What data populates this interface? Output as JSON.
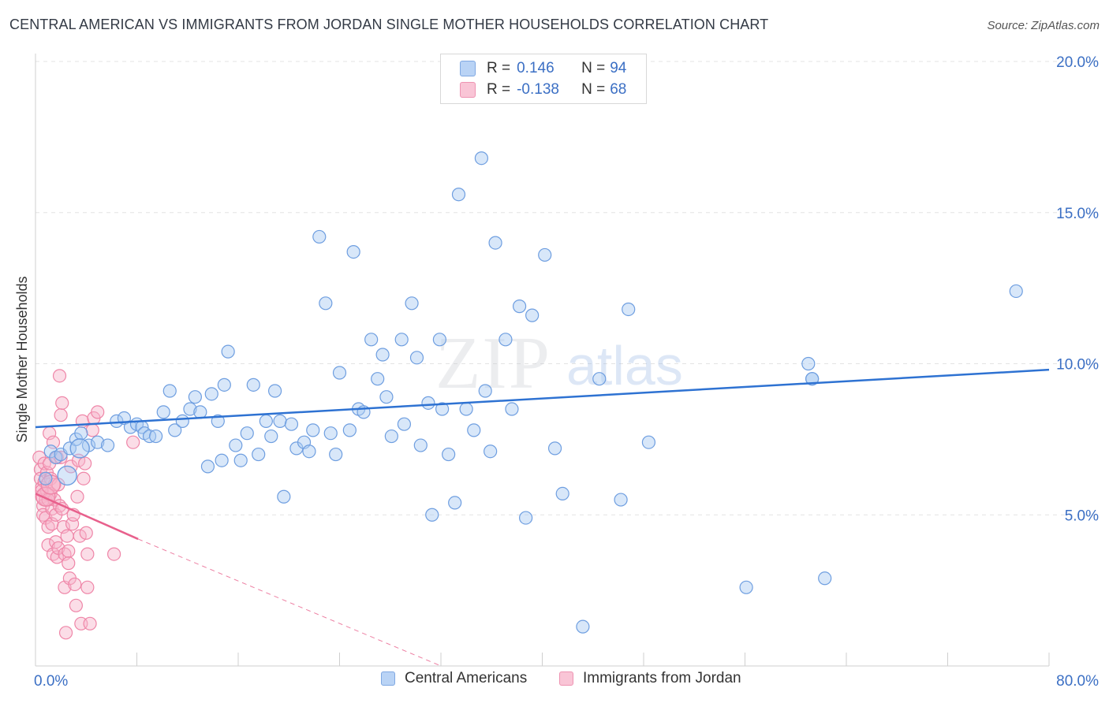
{
  "title": "CENTRAL AMERICAN VS IMMIGRANTS FROM JORDAN SINGLE MOTHER HOUSEHOLDS CORRELATION CHART",
  "source": "Source: ZipAtlas.com",
  "watermark": {
    "zip": "ZIP",
    "atlas": "atlas"
  },
  "legend_top": [
    {
      "r_label": "R = ",
      "r_value": "0.146",
      "n_label": "N = ",
      "n_value": "94"
    },
    {
      "r_label": "R = ",
      "r_value": "-0.138",
      "n_label": "N = ",
      "n_value": "68"
    }
  ],
  "legend_bottom": [
    "Central Americans",
    "Immigrants from Jordan"
  ],
  "colors": {
    "blue_fill": "#a9c9f2",
    "blue_stroke": "#6e9ee0",
    "blue_line": "#2e72d2",
    "pink_fill": "#f6b3c9",
    "pink_stroke": "#ef86a8",
    "pink_line": "#e8608c",
    "axis_text": "#3b6fc4"
  },
  "chart_data": {
    "type": "scatter",
    "title": "CENTRAL AMERICAN VS IMMIGRANTS FROM JORDAN SINGLE MOTHER HOUSEHOLDS CORRELATION CHART",
    "xlabel": "",
    "ylabel": "Single Mother Households",
    "xlim": [
      0,
      80
    ],
    "ylim": [
      0,
      20
    ],
    "x_tick_labels": [
      "0.0%",
      "80.0%"
    ],
    "y_ticks": [
      5,
      10,
      15,
      20
    ],
    "y_tick_labels": [
      "5.0%",
      "10.0%",
      "15.0%",
      "20.0%"
    ],
    "grid": "horizontal dashed",
    "legend_position": "top-center",
    "series": [
      {
        "name": "Central Americans",
        "color": "blue",
        "trend": {
          "x": [
            0,
            80
          ],
          "y": [
            7.9,
            9.8
          ],
          "style": "solid"
        },
        "points": [
          [
            0.8,
            6.2
          ],
          [
            1.2,
            7.1
          ],
          [
            1.6,
            6.9
          ],
          [
            2.0,
            7.0
          ],
          [
            2.7,
            7.2
          ],
          [
            3.2,
            7.5
          ],
          [
            3.6,
            7.7
          ],
          [
            4.2,
            7.3
          ],
          [
            4.9,
            7.4
          ],
          [
            5.7,
            7.3
          ],
          [
            6.4,
            8.1
          ],
          [
            7.0,
            8.2
          ],
          [
            7.5,
            7.9
          ],
          [
            8.0,
            8.0
          ],
          [
            8.4,
            7.9
          ],
          [
            8.6,
            7.7
          ],
          [
            9.0,
            7.6
          ],
          [
            9.5,
            7.6
          ],
          [
            10.1,
            8.4
          ],
          [
            10.6,
            9.1
          ],
          [
            11.0,
            7.8
          ],
          [
            11.6,
            8.1
          ],
          [
            12.2,
            8.5
          ],
          [
            12.6,
            8.9
          ],
          [
            13.0,
            8.4
          ],
          [
            13.6,
            6.6
          ],
          [
            13.9,
            9.0
          ],
          [
            14.4,
            8.1
          ],
          [
            14.7,
            6.8
          ],
          [
            14.9,
            9.3
          ],
          [
            15.2,
            10.4
          ],
          [
            15.8,
            7.3
          ],
          [
            16.2,
            6.8
          ],
          [
            16.7,
            7.7
          ],
          [
            17.2,
            9.3
          ],
          [
            17.6,
            7.0
          ],
          [
            18.2,
            8.1
          ],
          [
            18.6,
            7.6
          ],
          [
            18.9,
            9.1
          ],
          [
            19.3,
            8.1
          ],
          [
            19.6,
            5.6
          ],
          [
            20.2,
            8.0
          ],
          [
            20.6,
            7.2
          ],
          [
            21.2,
            7.4
          ],
          [
            21.6,
            7.1
          ],
          [
            21.9,
            7.8
          ],
          [
            22.4,
            14.2
          ],
          [
            22.9,
            12.0
          ],
          [
            23.3,
            7.7
          ],
          [
            23.7,
            7.0
          ],
          [
            24.0,
            9.7
          ],
          [
            24.8,
            7.8
          ],
          [
            25.1,
            13.7
          ],
          [
            25.5,
            8.5
          ],
          [
            25.9,
            8.4
          ],
          [
            26.5,
            10.8
          ],
          [
            27.0,
            9.5
          ],
          [
            27.4,
            10.3
          ],
          [
            27.7,
            8.9
          ],
          [
            28.1,
            7.6
          ],
          [
            28.9,
            10.8
          ],
          [
            29.1,
            8.0
          ],
          [
            29.7,
            12.0
          ],
          [
            30.1,
            10.2
          ],
          [
            30.4,
            7.3
          ],
          [
            31.0,
            8.7
          ],
          [
            31.3,
            5.0
          ],
          [
            31.9,
            10.8
          ],
          [
            32.1,
            8.5
          ],
          [
            32.6,
            7.0
          ],
          [
            33.1,
            5.4
          ],
          [
            33.4,
            15.6
          ],
          [
            34.0,
            8.5
          ],
          [
            34.6,
            7.8
          ],
          [
            35.2,
            16.8
          ],
          [
            35.5,
            9.1
          ],
          [
            35.9,
            7.1
          ],
          [
            36.3,
            14.0
          ],
          [
            37.1,
            10.8
          ],
          [
            37.6,
            8.5
          ],
          [
            38.2,
            11.9
          ],
          [
            38.7,
            4.9
          ],
          [
            39.2,
            11.6
          ],
          [
            40.2,
            13.6
          ],
          [
            41.0,
            7.2
          ],
          [
            41.6,
            5.7
          ],
          [
            43.2,
            1.3
          ],
          [
            44.5,
            9.5
          ],
          [
            46.2,
            5.5
          ],
          [
            46.8,
            11.8
          ],
          [
            48.4,
            7.4
          ],
          [
            56.1,
            2.6
          ],
          [
            61.0,
            10.0
          ],
          [
            61.3,
            9.5
          ],
          [
            61.3,
            9.5
          ],
          [
            62.3,
            2.9
          ],
          [
            77.4,
            12.4
          ]
        ],
        "big_points": [
          [
            2.5,
            6.3
          ],
          [
            3.5,
            7.2
          ]
        ]
      },
      {
        "name": "Immigrants from Jordan",
        "color": "pink",
        "trend": {
          "x": [
            0,
            8.1
          ],
          "y": [
            5.7,
            4.2
          ],
          "style": "solid",
          "extension": {
            "x": [
              8.1,
              32
            ],
            "y": [
              4.2,
              0
            ],
            "style": "dashed"
          }
        },
        "points": [
          [
            0.3,
            6.9
          ],
          [
            0.4,
            6.5
          ],
          [
            0.4,
            6.2
          ],
          [
            0.5,
            5.9
          ],
          [
            0.5,
            5.6
          ],
          [
            0.6,
            5.3
          ],
          [
            0.6,
            5.0
          ],
          [
            0.7,
            6.7
          ],
          [
            0.7,
            6.1
          ],
          [
            0.8,
            5.5
          ],
          [
            0.8,
            4.9
          ],
          [
            0.9,
            6.4
          ],
          [
            0.9,
            5.8
          ],
          [
            1.0,
            4.6
          ],
          [
            1.0,
            4.0
          ],
          [
            1.1,
            7.7
          ],
          [
            1.1,
            6.7
          ],
          [
            1.2,
            6.2
          ],
          [
            1.2,
            5.7
          ],
          [
            1.3,
            5.2
          ],
          [
            1.3,
            4.7
          ],
          [
            1.4,
            3.7
          ],
          [
            1.4,
            7.4
          ],
          [
            1.5,
            6.0
          ],
          [
            1.5,
            5.5
          ],
          [
            1.6,
            5.0
          ],
          [
            1.6,
            4.1
          ],
          [
            1.7,
            3.6
          ],
          [
            1.7,
            6.9
          ],
          [
            1.8,
            6.0
          ],
          [
            1.8,
            3.9
          ],
          [
            1.9,
            5.3
          ],
          [
            1.9,
            9.6
          ],
          [
            2.0,
            8.3
          ],
          [
            2.0,
            6.9
          ],
          [
            2.1,
            8.7
          ],
          [
            2.1,
            5.2
          ],
          [
            2.2,
            4.6
          ],
          [
            2.3,
            2.6
          ],
          [
            2.3,
            3.7
          ],
          [
            2.4,
            1.1
          ],
          [
            2.5,
            4.3
          ],
          [
            2.6,
            3.8
          ],
          [
            2.6,
            3.4
          ],
          [
            2.7,
            2.9
          ],
          [
            2.8,
            6.6
          ],
          [
            2.9,
            4.7
          ],
          [
            3.0,
            5.0
          ],
          [
            3.1,
            2.7
          ],
          [
            3.2,
            2.0
          ],
          [
            3.3,
            5.6
          ],
          [
            3.4,
            6.8
          ],
          [
            3.5,
            4.3
          ],
          [
            3.6,
            1.4
          ],
          [
            3.7,
            8.1
          ],
          [
            3.8,
            6.2
          ],
          [
            3.9,
            6.7
          ],
          [
            4.0,
            4.4
          ],
          [
            4.1,
            2.6
          ],
          [
            4.1,
            3.7
          ],
          [
            4.3,
            1.4
          ],
          [
            4.5,
            7.8
          ],
          [
            4.6,
            8.2
          ],
          [
            4.9,
            8.4
          ],
          [
            6.2,
            3.7
          ],
          [
            7.7,
            7.4
          ],
          [
            0.5,
            5.8
          ],
          [
            1.0,
            5.5
          ]
        ],
        "big_points": [
          [
            0.8,
            5.6
          ],
          [
            1.2,
            6.0
          ]
        ]
      }
    ]
  }
}
